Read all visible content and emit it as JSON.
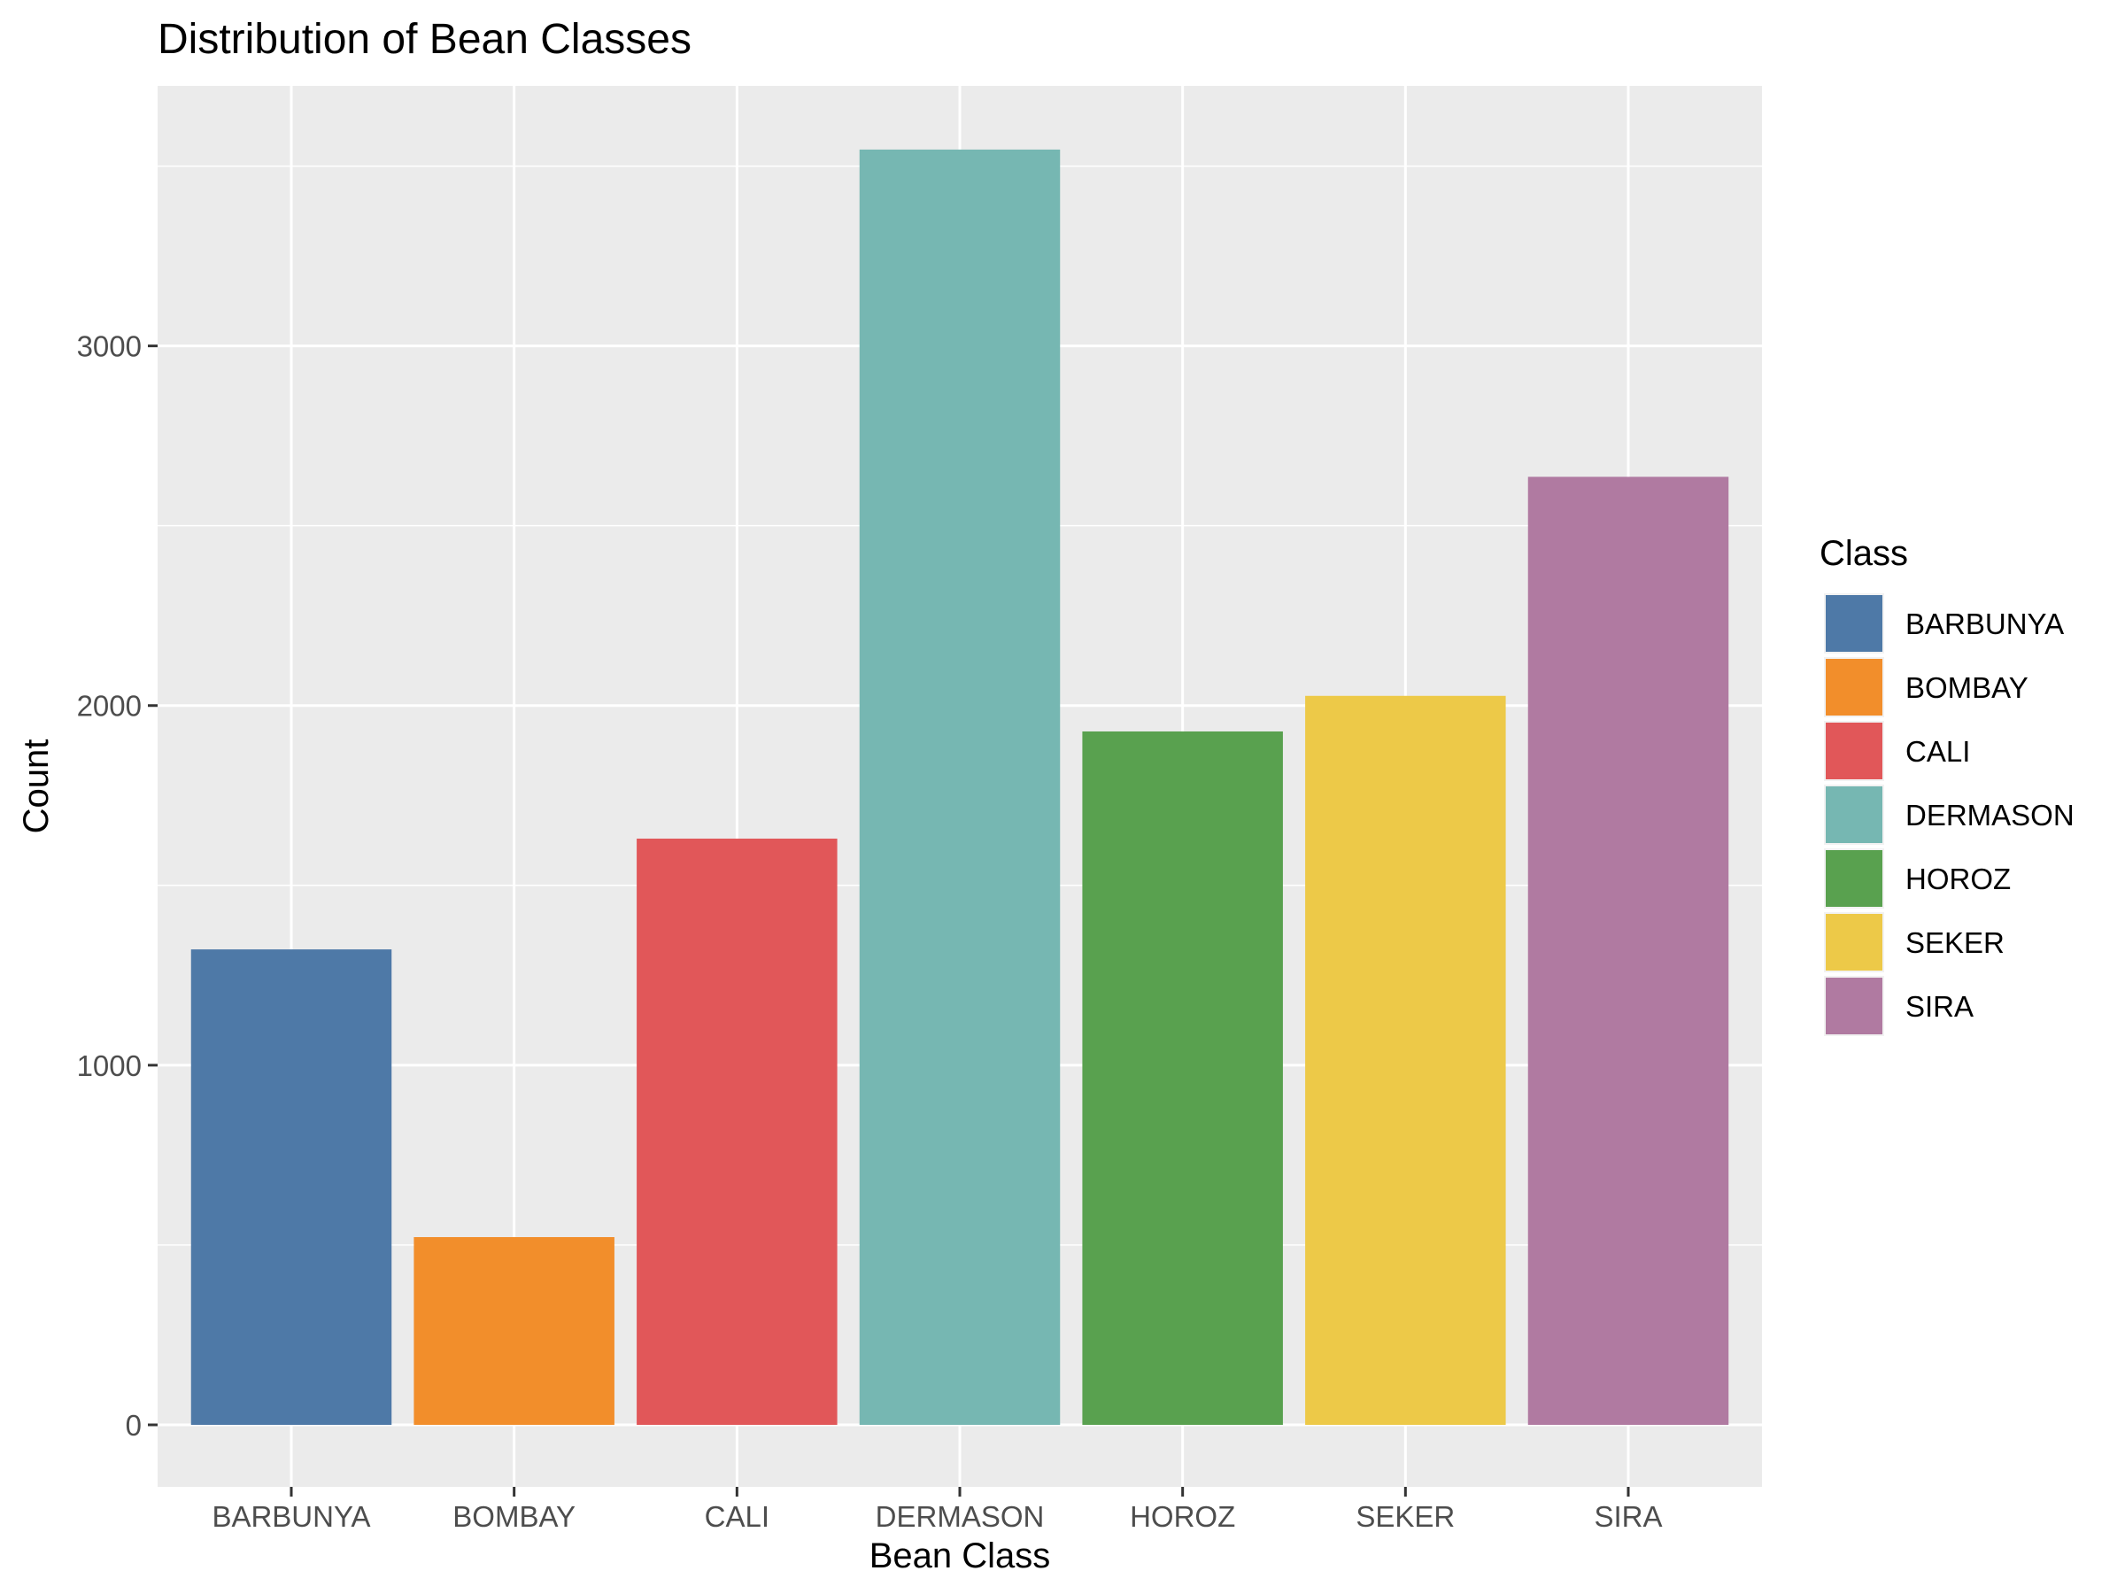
{
  "chart_data": {
    "type": "bar",
    "title": "Distribution of Bean Classes",
    "xlabel": "Bean Class",
    "ylabel": "Count",
    "categories": [
      "BARBUNYA",
      "BOMBAY",
      "CALI",
      "DERMASON",
      "HOROZ",
      "SEKER",
      "SIRA"
    ],
    "values": [
      1322,
      522,
      1630,
      3546,
      1928,
      2027,
      2636
    ],
    "colors": [
      "#4E79A7",
      "#F28E2B",
      "#E15759",
      "#76B7B2",
      "#59A14F",
      "#EDC948",
      "#B07AA1"
    ],
    "ylim": [
      -172.4,
      3723
    ],
    "yticks": [
      0,
      1000,
      2000,
      3000
    ],
    "ytick_labels": [
      "0",
      "1000",
      "2000",
      "3000"
    ],
    "grid": true,
    "legend": {
      "title": "Class",
      "position": "right",
      "entries": [
        "BARBUNYA",
        "BOMBAY",
        "CALI",
        "DERMASON",
        "HOROZ",
        "SEKER",
        "SIRA"
      ]
    }
  }
}
